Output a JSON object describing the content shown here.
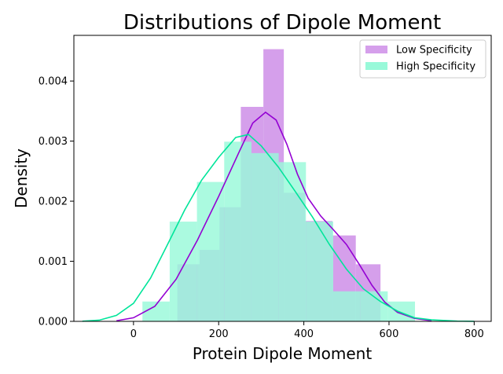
{
  "chart_data": {
    "type": "histogram",
    "title": "Distributions of Dipole Moment",
    "xlabel": "Protein Dipole Moment",
    "ylabel": "Density",
    "xlim": [
      -140,
      840
    ],
    "ylim": [
      0,
      0.00476
    ],
    "x_ticks": [
      0,
      200,
      400,
      600,
      800
    ],
    "y_ticks": [
      0.0,
      0.001,
      0.002,
      0.003,
      0.004
    ],
    "y_tick_labels": [
      "0.000",
      "0.001",
      "0.002",
      "0.003",
      "0.004"
    ],
    "x_tick_labels": [
      "0",
      "200",
      "400",
      "600",
      "800"
    ],
    "grid": false,
    "legend_position": "top-right",
    "series": [
      {
        "name": "Low Specificity",
        "color": "#9400D3",
        "fill": "#D59FEB",
        "bin_edges": [
          103,
          155,
          202,
          252,
          305,
          353,
          403,
          467,
          522,
          580
        ],
        "densities": [
          0.00095,
          0.00119,
          0.0019,
          0.00357,
          0.00453,
          0.00214,
          0.00167,
          0.00143,
          0.00095
        ],
        "kde": [
          [
            -40,
            1e-05
          ],
          [
            0,
            6e-05
          ],
          [
            50,
            0.00025
          ],
          [
            100,
            0.0007
          ],
          [
            150,
            0.00135
          ],
          [
            200,
            0.00208
          ],
          [
            250,
            0.00285
          ],
          [
            280,
            0.0033
          ],
          [
            310,
            0.00348
          ],
          [
            335,
            0.00335
          ],
          [
            360,
            0.00295
          ],
          [
            385,
            0.00245
          ],
          [
            410,
            0.00205
          ],
          [
            440,
            0.00175
          ],
          [
            470,
            0.00152
          ],
          [
            500,
            0.00128
          ],
          [
            530,
            0.00095
          ],
          [
            560,
            0.0006
          ],
          [
            590,
            0.00032
          ],
          [
            620,
            0.00015
          ],
          [
            660,
            5e-05
          ],
          [
            700,
            1e-05
          ]
        ]
      },
      {
        "name": "High Specificity",
        "color": "#00E59A",
        "fill": "#98F9D9",
        "bin_edges": [
          21,
          85,
          149,
          213,
          277,
          341,
          405,
          469,
          533,
          597,
          661
        ],
        "densities": [
          0.00033,
          0.00166,
          0.00232,
          0.00299,
          0.0028,
          0.00265,
          0.00166,
          0.0005,
          0.0005,
          0.00033
        ],
        "kde": [
          [
            -120,
            3e-06
          ],
          [
            -80,
            2e-05
          ],
          [
            -40,
            0.0001
          ],
          [
            0,
            0.0003
          ],
          [
            40,
            0.00072
          ],
          [
            80,
            0.00128
          ],
          [
            120,
            0.00185
          ],
          [
            160,
            0.00235
          ],
          [
            200,
            0.00273
          ],
          [
            240,
            0.00306
          ],
          [
            270,
            0.00311
          ],
          [
            300,
            0.00292
          ],
          [
            340,
            0.00257
          ],
          [
            380,
            0.00216
          ],
          [
            420,
            0.00174
          ],
          [
            460,
            0.00128
          ],
          [
            500,
            0.00087
          ],
          [
            540,
            0.00054
          ],
          [
            580,
            0.00033
          ],
          [
            620,
            0.00017
          ],
          [
            660,
            6e-05
          ],
          [
            700,
            2.5e-05
          ],
          [
            760,
            5e-06
          ],
          [
            800,
            1e-06
          ]
        ]
      }
    ]
  }
}
